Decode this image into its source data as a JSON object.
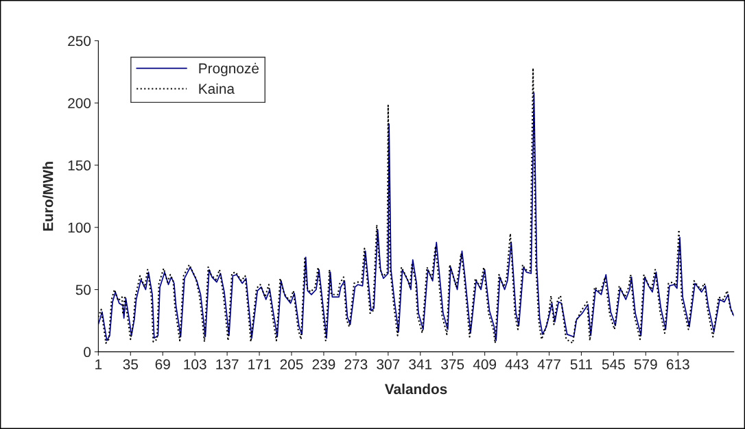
{
  "chart_data": {
    "type": "line",
    "xlabel": "Valandos",
    "ylabel": "Euro/MWh",
    "xlim": [
      1,
      672
    ],
    "xticks": [
      1,
      35,
      69,
      103,
      137,
      171,
      205,
      239,
      273,
      307,
      341,
      375,
      409,
      443,
      477,
      511,
      545,
      579,
      613
    ],
    "ylim": [
      0,
      250
    ],
    "yticks": [
      0,
      50,
      100,
      150,
      200,
      250
    ],
    "grid": false,
    "legend": "top left",
    "series": [
      {
        "name": "Prognozė",
        "color": "#000080",
        "line_style": "solid",
        "x": [
          1,
          5,
          10,
          13,
          16,
          19,
          23,
          27,
          28,
          30,
          33,
          36,
          39,
          41,
          46,
          51,
          54,
          58,
          60,
          64,
          66,
          71,
          75,
          78,
          81,
          83,
          88,
          92,
          98,
          105,
          109,
          112,
          114,
          118,
          121,
          126,
          130,
          134,
          139,
          143,
          147,
          153,
          157,
          163,
          169,
          173,
          178,
          182,
          185,
          190,
          194,
          198,
          204,
          208,
          213,
          216,
          220,
          222,
          226,
          231,
          234,
          242,
          246,
          248,
          255,
          257,
          261,
          264,
          267,
          272,
          275,
          280,
          283,
          289,
          292,
          296,
          299,
          302,
          307,
          308,
          310,
          314,
          318,
          322,
          328,
          331,
          333,
          337,
          339,
          344,
          349,
          354,
          358,
          365,
          370,
          373,
          380,
          385,
          388,
          394,
          400,
          405,
          409,
          414,
          419,
          421,
          425,
          430,
          433,
          437,
          442,
          445,
          450,
          453,
          458,
          461,
          464,
          467,
          470,
          474,
          477,
          480,
          483,
          487,
          490,
          496,
          503,
          506,
          512,
          518,
          521,
          526,
          532,
          537,
          542,
          547,
          552,
          558,
          562,
          564,
          568,
          574,
          578,
          582,
          586,
          590,
          595,
          600,
          604,
          609,
          612,
          615,
          618,
          625,
          631,
          638,
          642,
          645,
          651,
          657,
          662,
          666,
          669,
          672
        ],
        "values": [
          22,
          32,
          9,
          13,
          40,
          48,
          39,
          37,
          27,
          43,
          29,
          13,
          26,
          42,
          58,
          50,
          64,
          46,
          11,
          13,
          52,
          64,
          54,
          60,
          55,
          37,
          12,
          59,
          68,
          57,
          46,
          26,
          12,
          66,
          60,
          56,
          63,
          48,
          13,
          61,
          62,
          55,
          59,
          11,
          49,
          52,
          42,
          50,
          35,
          12,
          57,
          45,
          39,
          47,
          20,
          14,
          76,
          49,
          46,
          50,
          66,
          11,
          64,
          44,
          44,
          52,
          57,
          28,
          22,
          52,
          54,
          53,
          81,
          33,
          35,
          98,
          66,
          59,
          63,
          183,
          66,
          39,
          16,
          66,
          57,
          50,
          74,
          55,
          31,
          18,
          66,
          57,
          88,
          31,
          18,
          68,
          50,
          81,
          61,
          15,
          57,
          50,
          66,
          33,
          20,
          9,
          60,
          50,
          57,
          88,
          31,
          21,
          68,
          64,
          63,
          208,
          68,
          27,
          14,
          20,
          29,
          39,
          24,
          40,
          39,
          14,
          12,
          26,
          31,
          38,
          13,
          50,
          46,
          62,
          32,
          21,
          51,
          42,
          50,
          60,
          31,
          13,
          60,
          53,
          48,
          64,
          35,
          18,
          53,
          54,
          51,
          92,
          44,
          20,
          55,
          48,
          53,
          37,
          16,
          42,
          40,
          46,
          34,
          29
        ]
      },
      {
        "name": "Kaina",
        "color": "#000000",
        "line_style": "dotted",
        "x": [
          1,
          4,
          9,
          12,
          15,
          18,
          22,
          26,
          27,
          29,
          32,
          35,
          38,
          40,
          45,
          50,
          53,
          57,
          59,
          63,
          65,
          70,
          74,
          77,
          80,
          82,
          87,
          91,
          97,
          104,
          108,
          111,
          113,
          117,
          120,
          125,
          129,
          133,
          138,
          142,
          146,
          152,
          156,
          162,
          168,
          172,
          177,
          181,
          184,
          189,
          193,
          197,
          203,
          207,
          212,
          215,
          219,
          221,
          225,
          230,
          233,
          241,
          245,
          247,
          254,
          256,
          260,
          263,
          266,
          271,
          274,
          279,
          282,
          288,
          291,
          295,
          298,
          301,
          306,
          307,
          309,
          313,
          317,
          321,
          327,
          330,
          332,
          336,
          338,
          343,
          348,
          353,
          357,
          364,
          369,
          372,
          379,
          384,
          387,
          393,
          399,
          404,
          408,
          413,
          418,
          420,
          424,
          429,
          432,
          436,
          441,
          444,
          449,
          452,
          457,
          460,
          463,
          466,
          469,
          473,
          476,
          479,
          482,
          486,
          489,
          495,
          502,
          505,
          511,
          517,
          520,
          525,
          531,
          536,
          541,
          546,
          551,
          557,
          561,
          563,
          567,
          573,
          577,
          581,
          585,
          589,
          594,
          599,
          603,
          608,
          611,
          614,
          617,
          624,
          630,
          637,
          641,
          644,
          650,
          656,
          661,
          665,
          668,
          671
        ],
        "values": [
          28,
          34,
          7,
          10,
          42,
          50,
          41,
          44,
          30,
          45,
          27,
          10,
          24,
          44,
          61,
          52,
          66,
          44,
          8,
          10,
          55,
          67,
          56,
          62,
          57,
          35,
          9,
          61,
          70,
          59,
          44,
          24,
          8,
          68,
          62,
          58,
          66,
          46,
          9,
          63,
          64,
          57,
          61,
          8,
          51,
          54,
          44,
          54,
          33,
          9,
          59,
          47,
          41,
          49,
          18,
          10,
          75,
          52,
          48,
          52,
          68,
          9,
          66,
          46,
          46,
          55,
          60,
          26,
          20,
          55,
          56,
          56,
          83,
          31,
          33,
          102,
          68,
          61,
          63,
          198,
          68,
          37,
          13,
          68,
          59,
          52,
          70,
          57,
          29,
          15,
          68,
          59,
          85,
          29,
          14,
          70,
          52,
          79,
          63,
          12,
          59,
          52,
          68,
          31,
          18,
          7,
          62,
          52,
          59,
          95,
          29,
          18,
          70,
          66,
          65,
          228,
          70,
          25,
          10,
          18,
          27,
          45,
          22,
          42,
          45,
          10,
          7,
          24,
          33,
          40,
          9,
          52,
          48,
          60,
          30,
          18,
          53,
          44,
          52,
          62,
          29,
          10,
          62,
          55,
          50,
          66,
          33,
          15,
          55,
          56,
          53,
          98,
          42,
          18,
          57,
          50,
          55,
          35,
          12,
          44,
          42,
          49,
          36,
          30
        ]
      }
    ]
  }
}
